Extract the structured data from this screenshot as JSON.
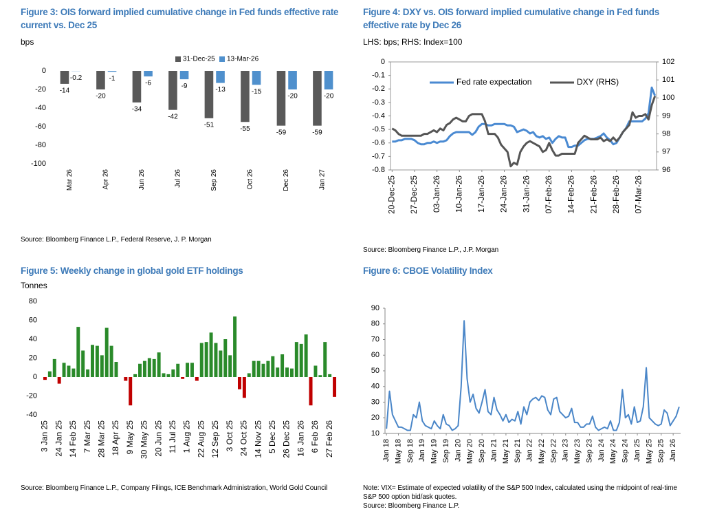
{
  "chart_data": [
    {
      "type": "bar",
      "title": "Figure 3: OIS forward implied cumulative change in Fed funds effective rate current vs. Dec 25",
      "subtitle": "bps",
      "source": "Source: Bloomberg Finance L.P., Federal Reserve, J. P. Morgan",
      "categories": [
        "Mar 26",
        "Apr 26",
        "Jun 26",
        "Jul 26",
        "Sep 26",
        "Oct 26",
        "Dec 26",
        "Jan 27"
      ],
      "series": [
        {
          "name": "31-Dec-25",
          "color": "#595959",
          "values": [
            -14,
            -20,
            -34,
            -42,
            -51,
            -55,
            -59,
            -59
          ]
        },
        {
          "name": "13-Mar-26",
          "color": "#4f90cd",
          "values": [
            -0.2,
            -1,
            -6,
            -9,
            -13,
            -15,
            -20,
            -20
          ]
        }
      ],
      "ylim": [
        -100,
        0
      ],
      "yticks": [
        0,
        -20,
        -40,
        -60,
        -80,
        -100
      ],
      "legend": "top",
      "grid": false
    },
    {
      "type": "line",
      "title": "Figure 4: DXY vs. OIS forward implied cumulative change in Fed funds effective rate by Dec 26",
      "subtitle": "LHS: bps; RHS: Index=100",
      "source": "Source: Bloomberg Finance L.P., J.P. Morgan",
      "categories": [
        "20-Dec-25",
        null,
        null,
        null,
        null,
        null,
        null,
        "27-Dec-25",
        null,
        null,
        null,
        null,
        null,
        null,
        "03-Jan-26",
        null,
        null,
        null,
        null,
        null,
        null,
        "10-Jan-26",
        null,
        null,
        null,
        null,
        null,
        null,
        "17-Jan-26",
        null,
        null,
        null,
        null,
        null,
        null,
        "24-Jan-26",
        null,
        null,
        null,
        null,
        null,
        null,
        "31-Jan-26",
        null,
        null,
        null,
        null,
        null,
        null,
        "07-Feb-26",
        null,
        null,
        null,
        null,
        null,
        null,
        "14-Feb-26",
        null,
        null,
        null,
        null,
        null,
        null,
        "21-Feb-26",
        null,
        null,
        null,
        null,
        null,
        null,
        "28-Feb-26",
        null,
        null,
        null,
        null,
        null,
        null,
        "07-Mar-26",
        null,
        null,
        null,
        null,
        null
      ],
      "series": [
        {
          "name": "Fed rate expectation",
          "color": "#4a8ad2",
          "values": [
            -0.59,
            -0.59,
            -0.58,
            -0.58,
            -0.57,
            -0.57,
            -0.57,
            -0.58,
            -0.6,
            -0.61,
            -0.61,
            -0.6,
            -0.6,
            -0.59,
            -0.6,
            -0.59,
            -0.59,
            -0.58,
            -0.55,
            -0.53,
            -0.52,
            -0.52,
            -0.52,
            -0.52,
            -0.52,
            -0.54,
            -0.52,
            -0.48,
            -0.46,
            -0.46,
            -0.47,
            -0.47,
            -0.46,
            -0.46,
            -0.46,
            -0.46,
            -0.47,
            -0.47,
            -0.48,
            -0.52,
            -0.51,
            -0.5,
            -0.51,
            -0.53,
            -0.52,
            -0.55,
            -0.56,
            -0.55,
            -0.57,
            -0.56,
            -0.6,
            -0.57,
            -0.55,
            -0.56,
            -0.56,
            -0.63,
            -0.63,
            -0.62,
            -0.62,
            -0.6,
            -0.58,
            -0.57,
            -0.57,
            -0.57,
            -0.56,
            -0.55,
            -0.53,
            -0.56,
            -0.58,
            -0.61,
            -0.6,
            -0.56,
            -0.52,
            -0.49,
            -0.44,
            -0.44,
            -0.44,
            -0.44,
            -0.44,
            -0.42,
            -0.38,
            -0.19,
            -0.25
          ]
        },
        {
          "name": "DXY (RHS)",
          "color": "#555555",
          "axis": "y2",
          "values": [
            98.3,
            98.2,
            98.0,
            97.9,
            97.9,
            97.9,
            97.9,
            97.9,
            97.9,
            97.9,
            98.0,
            98.0,
            98.1,
            98.2,
            98.1,
            98.3,
            98.2,
            98.5,
            98.6,
            98.8,
            98.9,
            98.8,
            98.7,
            98.7,
            99.0,
            99.1,
            99.1,
            99.1,
            99.1,
            98.7,
            98.0,
            98.0,
            98.0,
            97.8,
            97.4,
            97.2,
            97.0,
            96.2,
            96.4,
            96.3,
            97.0,
            97.3,
            97.5,
            97.6,
            97.5,
            97.4,
            97.3,
            97.0,
            97.1,
            97.5,
            97.1,
            96.8,
            96.8,
            96.9,
            96.9,
            96.9,
            96.9,
            96.9,
            97.5,
            97.7,
            97.9,
            97.8,
            97.7,
            97.7,
            97.7,
            97.8,
            97.6,
            97.7,
            97.6,
            97.8,
            97.6,
            97.8,
            98.1,
            98.3,
            98.5,
            99.2,
            98.9,
            99.0,
            99.0,
            99.1,
            98.8,
            99.6,
            100.1
          ]
        }
      ],
      "ylim": [
        -0.8,
        0
      ],
      "yticks": [
        0,
        -0.1,
        -0.2,
        -0.3,
        -0.4,
        -0.5,
        -0.6,
        -0.7,
        -0.8
      ],
      "y2lim": [
        96,
        102
      ],
      "y2ticks": [
        96,
        97,
        98,
        99,
        100,
        101,
        102
      ],
      "legend": "inside-top",
      "grid": false
    },
    {
      "type": "bar",
      "title": "Figure 5: Weekly change in global gold ETF holdings",
      "subtitle": "Tonnes",
      "source": "Source: Bloomberg Finance L.P., Company Filings, ICE Benchmark Administration, World Gold Council",
      "categories": [
        "3 Jan 25",
        null,
        null,
        "24 Jan 25",
        null,
        null,
        "14 Feb 25",
        null,
        null,
        "7 Mar 25",
        null,
        null,
        "28 Mar 25",
        null,
        null,
        "18 Apr 25",
        null,
        null,
        "9 May 25",
        null,
        null,
        "30 May 25",
        null,
        null,
        "20 Jun 25",
        null,
        null,
        "11 Jul 25",
        null,
        null,
        "1 Aug 25",
        null,
        null,
        "22 Aug 25",
        null,
        null,
        "12 Sep 25",
        null,
        null,
        "3 Oct 25",
        null,
        null,
        "24 Oct 25",
        null,
        null,
        "14 Nov 25",
        null,
        null,
        "5 Dec 25",
        null,
        null,
        "26 Dec 25",
        null,
        null,
        "16 Jan 26",
        null,
        null,
        "6 Feb 26",
        null,
        null,
        "27 Feb 26",
        null
      ],
      "values": [
        -3,
        6,
        19,
        -7,
        15,
        12,
        9,
        53,
        28,
        8,
        34,
        33,
        23,
        52,
        33,
        16,
        0,
        -4,
        -30,
        3,
        14,
        17,
        20,
        19,
        26,
        4,
        3,
        8,
        14,
        -2,
        15,
        15,
        -4,
        36,
        37,
        47,
        36,
        28,
        40,
        23,
        64,
        -13,
        -22,
        4,
        17,
        17,
        14,
        17,
        22,
        10,
        24,
        10,
        9,
        37,
        35,
        45,
        -30,
        12,
        2,
        37,
        3,
        -21
      ],
      "positive_color": "#2a8a2a",
      "negative_color": "#c00000",
      "ylim": [
        -40,
        80
      ],
      "yticks": [
        -40,
        -20,
        0,
        20,
        40,
        60,
        80
      ],
      "grid": false
    },
    {
      "type": "line",
      "title": "Figure 6: CBOE Volatility Index",
      "note": "Note: VIX= Estimate of expected volatility of the S&P 500 Index, calculated using the midpoint of real-time S&P 500 option bid/ask quotes.",
      "source": "Source: Bloomberg Finance L.P.",
      "categories": [
        "Jan 18",
        null,
        null,
        null,
        "May 18",
        null,
        null,
        null,
        "Sep 18",
        null,
        null,
        null,
        "Jan 19",
        null,
        null,
        null,
        "May 19",
        null,
        null,
        null,
        "Sep 19",
        null,
        null,
        null,
        "Jan 20",
        null,
        null,
        null,
        "May 20",
        null,
        null,
        null,
        "Sep 20",
        null,
        null,
        null,
        "Jan 21",
        null,
        null,
        null,
        "May 21",
        null,
        null,
        null,
        "Sep 21",
        null,
        null,
        null,
        "Jan 22",
        null,
        null,
        null,
        "May 22",
        null,
        null,
        null,
        "Sep 22",
        null,
        null,
        null,
        "Jan 23",
        null,
        null,
        null,
        "May 23",
        null,
        null,
        null,
        "Sep 23",
        null,
        null,
        null,
        "Jan 24",
        null,
        null,
        null,
        "May 24",
        null,
        null,
        null,
        "Sep 24",
        null,
        null,
        null,
        "Jan 25",
        null,
        null,
        null,
        "May 25",
        null,
        null,
        null,
        "Sep 25",
        null,
        null,
        null,
        "Jan 26",
        null,
        null
      ],
      "values": [
        13,
        37,
        22,
        18,
        14,
        14,
        13,
        12,
        12,
        22,
        20,
        30,
        18,
        15,
        14,
        13,
        18,
        15,
        13,
        22,
        16,
        15,
        12,
        13,
        15,
        40,
        82,
        45,
        30,
        35,
        26,
        23,
        30,
        38,
        24,
        22,
        33,
        25,
        22,
        18,
        22,
        17,
        19,
        18,
        24,
        16,
        27,
        22,
        30,
        32,
        33,
        31,
        34,
        33,
        25,
        22,
        32,
        33,
        24,
        22,
        20,
        21,
        26,
        17,
        17,
        14,
        14,
        16,
        16,
        21,
        14,
        12,
        13,
        14,
        13,
        18,
        12,
        12,
        17,
        38,
        20,
        22,
        16,
        27,
        17,
        18,
        27,
        52,
        20,
        18,
        16,
        15,
        16,
        25,
        23,
        15,
        18,
        21,
        27
      ],
      "color": "#4a86c8",
      "ylim": [
        10,
        90
      ],
      "yticks": [
        10,
        20,
        30,
        40,
        50,
        60,
        70,
        80,
        90
      ],
      "grid": false
    }
  ]
}
